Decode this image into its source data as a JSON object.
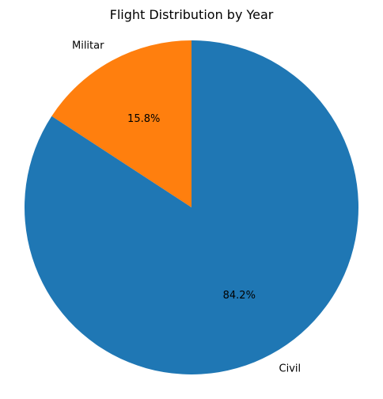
{
  "chart_data": {
    "type": "pie",
    "title": "Flight Distribution by Year",
    "start_angle_deg": 90,
    "direction": "counterclockwise",
    "slices": [
      {
        "label": "Militar",
        "value": 15.8,
        "pct_label": "15.8%",
        "color": "#ff7f0e"
      },
      {
        "label": "Civil",
        "value": 84.2,
        "pct_label": "84.2%",
        "color": "#1f77b4"
      }
    ]
  }
}
